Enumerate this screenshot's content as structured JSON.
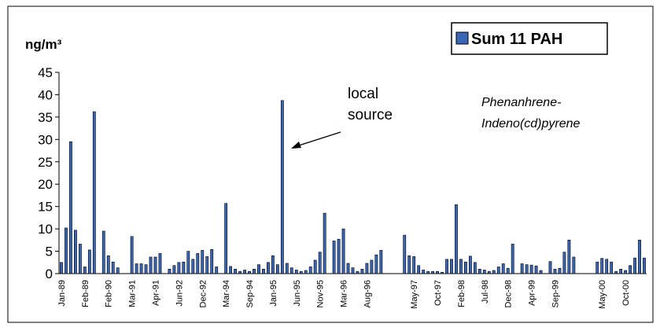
{
  "chart_data": {
    "type": "bar",
    "y_label": "ng/m³",
    "annotations": [
      [
        "local",
        "source"
      ],
      [
        "Phenanhrene-",
        "Indeno(cd)pyrene"
      ]
    ],
    "legend": "top-right",
    "categories": [
      "Jan-89",
      null,
      null,
      null,
      null,
      "Feb-89",
      null,
      null,
      null,
      null,
      "Feb-90",
      null,
      null,
      null,
      null,
      "Mar-91",
      null,
      null,
      null,
      null,
      "Apr-91",
      null,
      null,
      null,
      null,
      "Jun-92",
      null,
      null,
      null,
      null,
      "Dec-92",
      null,
      null,
      null,
      null,
      "Mar-94",
      null,
      null,
      null,
      null,
      "Sep-94",
      null,
      null,
      null,
      null,
      "Jan-95",
      null,
      null,
      null,
      null,
      "Jun-95",
      null,
      null,
      null,
      null,
      "Nov-95",
      null,
      null,
      null,
      null,
      "Mar-96",
      null,
      null,
      null,
      null,
      "Aug-96",
      null,
      null,
      null,
      null,
      null,
      null,
      null,
      null,
      null,
      "May-97",
      null,
      null,
      null,
      null,
      "Oct-97",
      null,
      null,
      null,
      null,
      "Feb-98",
      null,
      null,
      null,
      null,
      "Jul-98",
      null,
      null,
      null,
      null,
      "Dec-98",
      null,
      null,
      null,
      null,
      "Apr-99",
      null,
      null,
      null,
      null,
      "Sep-99",
      null,
      null,
      null,
      null,
      null,
      null,
      null,
      null,
      null,
      "May-00",
      null,
      null,
      null,
      null,
      "Oct-00",
      null,
      null,
      null,
      null
    ],
    "series": [
      {
        "name": "Sum 11 PAH",
        "color": "#3a66b8",
        "values": [
          2.5,
          10.2,
          29.5,
          9.7,
          6.6,
          1.5,
          5.3,
          36.2,
          null,
          9.5,
          4.0,
          2.6,
          1.3,
          null,
          null,
          8.3,
          2.2,
          2.2,
          2.0,
          3.7,
          3.7,
          4.5,
          null,
          1.0,
          1.8,
          2.5,
          2.6,
          5.0,
          3.2,
          4.5,
          5.2,
          3.8,
          5.4,
          1.5,
          null,
          15.7,
          1.6,
          1.0,
          0.5,
          0.8,
          0.5,
          1.0,
          2.0,
          1.0,
          2.5,
          4.0,
          2.0,
          38.7,
          2.3,
          1.3,
          0.8,
          0.5,
          0.7,
          1.5,
          3.0,
          4.8,
          13.5,
          null,
          7.3,
          7.7,
          10.0,
          2.3,
          1.3,
          0.5,
          1.0,
          2.3,
          3.0,
          4.2,
          5.2,
          null,
          null,
          null,
          null,
          8.6,
          4.0,
          3.8,
          1.8,
          0.8,
          0.5,
          0.5,
          0.5,
          0.3,
          3.2,
          3.2,
          15.4,
          3.2,
          2.6,
          3.9,
          2.5,
          1.0,
          0.8,
          0.5,
          0.7,
          1.5,
          2.2,
          1.2,
          6.6,
          null,
          2.2,
          2.0,
          1.9,
          1.7,
          0.7,
          null,
          2.7,
          1.0,
          1.2,
          4.8,
          7.5,
          3.7,
          null,
          null,
          null,
          null,
          2.6,
          3.4,
          3.2,
          2.6,
          0.5,
          1.0,
          0.7,
          1.8,
          3.5,
          7.5,
          3.5
        ]
      }
    ],
    "ylim": [
      0,
      45
    ],
    "yticks": [
      0,
      5,
      10,
      15,
      20,
      25,
      30,
      35,
      40,
      45
    ]
  }
}
